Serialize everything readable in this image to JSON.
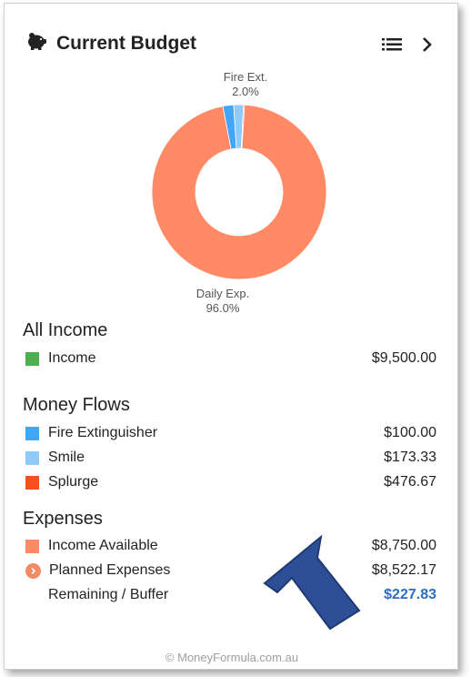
{
  "header": {
    "title": "Current Budget",
    "icon": "piggy-bank-icon",
    "list_icon": "list-icon",
    "next_icon": "chevron-right-icon"
  },
  "chart_data": {
    "type": "pie",
    "donut": true,
    "slices": [
      {
        "label": "Fire Ext.",
        "percent": 2.0,
        "color": "#42a5f5"
      },
      {
        "label": "Smile",
        "percent": 1.8,
        "color": "#90caf9"
      },
      {
        "label": "Splurge",
        "percent": 0.2,
        "color": "#f4511e"
      },
      {
        "label": "Daily Exp.",
        "percent": 96.0,
        "color": "#ff8a65"
      }
    ],
    "labels": [
      {
        "name": "Fire Ext.",
        "value": "2.0%"
      },
      {
        "name": "Daily Exp.",
        "value": "96.0%"
      }
    ]
  },
  "income": {
    "title": "All Income",
    "items": [
      {
        "label": "Income",
        "amount": "$9,500.00",
        "color": "#4caf50"
      }
    ]
  },
  "flows": {
    "title": "Money Flows",
    "items": [
      {
        "label": "Fire Extinguisher",
        "amount": "$100.00",
        "color": "#42a5f5"
      },
      {
        "label": "Smile",
        "amount": "$173.33",
        "color": "#90caf9"
      },
      {
        "label": "Splurge",
        "amount": "$476.67",
        "color": "#f4511e"
      }
    ]
  },
  "expenses": {
    "title": "Expenses",
    "items": [
      {
        "label": "Income Available",
        "amount": "$8,750.00",
        "color": "#ff8a65"
      },
      {
        "label": "Planned Expenses",
        "amount": "$8,522.17",
        "color": "#f48a63"
      },
      {
        "label": "Remaining / Buffer",
        "amount": "$227.83",
        "color": "#2b6cc4"
      }
    ]
  },
  "footer": "© MoneyFormula.com.au",
  "annotation": {
    "arrow_color": "#2e4f96"
  }
}
